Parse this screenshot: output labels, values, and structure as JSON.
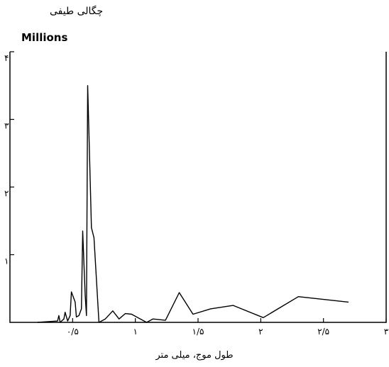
{
  "chart_data": {
    "type": "line",
    "ylabel": "چگالی طیفی",
    "yunit": "Millions",
    "xlabel": "طول موج، میلی متر",
    "xlim": [
      0,
      3
    ],
    "ylim": [
      0,
      4
    ],
    "xticks": [
      0.5,
      1,
      1.5,
      2,
      2.5,
      3
    ],
    "xtick_labels": [
      "۰/۵",
      "۱",
      "۱/۵",
      "۲",
      "۲/۵",
      "۳"
    ],
    "yticks": [
      1,
      2,
      3,
      4
    ],
    "ytick_labels": [
      "۱",
      "۲",
      "۳",
      "۴"
    ],
    "grid": false,
    "series": [
      {
        "values": [
          [
            0.22,
            0.0
          ],
          [
            0.38,
            0.02
          ],
          [
            0.39,
            0.1
          ],
          [
            0.4,
            0.0
          ],
          [
            0.43,
            0.05
          ],
          [
            0.44,
            0.15
          ],
          [
            0.46,
            0.02
          ],
          [
            0.48,
            0.1
          ],
          [
            0.49,
            0.45
          ],
          [
            0.52,
            0.3
          ],
          [
            0.53,
            0.08
          ],
          [
            0.55,
            0.1
          ],
          [
            0.57,
            0.2
          ],
          [
            0.58,
            1.35
          ],
          [
            0.6,
            0.4
          ],
          [
            0.61,
            0.1
          ],
          [
            0.62,
            3.5
          ],
          [
            0.63,
            2.8
          ],
          [
            0.65,
            1.4
          ],
          [
            0.67,
            1.25
          ],
          [
            0.71,
            0.0
          ],
          [
            0.76,
            0.05
          ],
          [
            0.82,
            0.17
          ],
          [
            0.87,
            0.05
          ],
          [
            0.92,
            0.13
          ],
          [
            0.97,
            0.12
          ],
          [
            1.04,
            0.05
          ],
          [
            1.09,
            0.0
          ],
          [
            1.14,
            0.05
          ],
          [
            1.24,
            0.03
          ],
          [
            1.35,
            0.44
          ],
          [
            1.46,
            0.12
          ],
          [
            1.6,
            0.2
          ],
          [
            1.78,
            0.25
          ],
          [
            2.02,
            0.07
          ],
          [
            2.3,
            0.38
          ],
          [
            2.7,
            0.3
          ]
        ]
      }
    ]
  }
}
